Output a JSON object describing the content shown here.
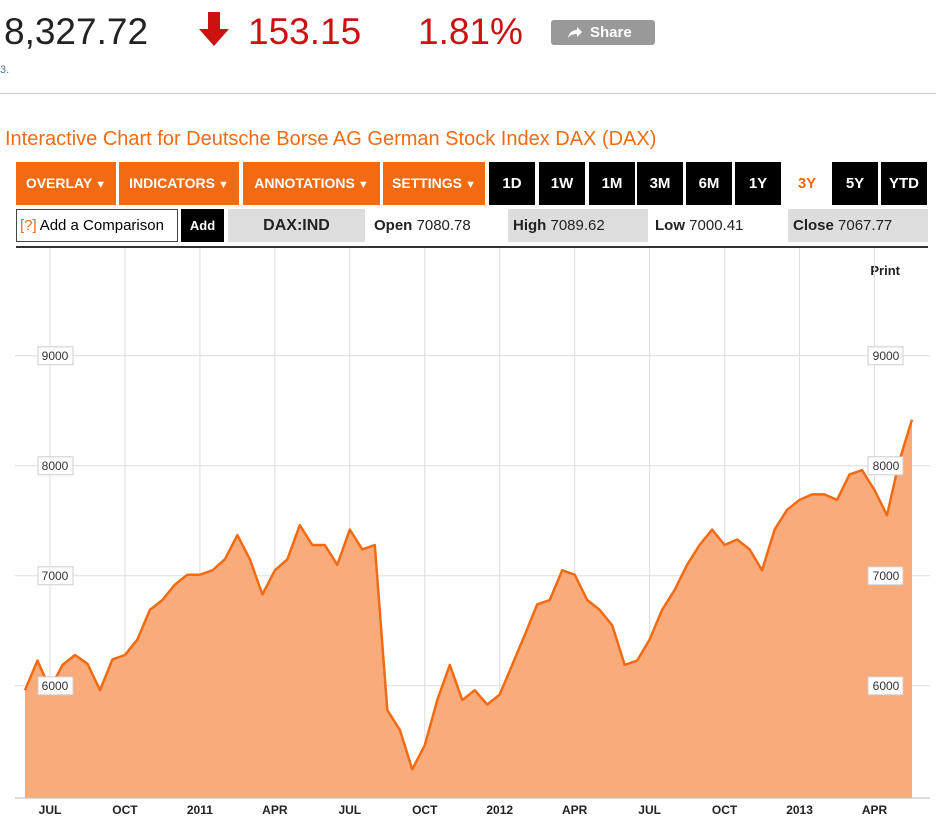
{
  "header": {
    "price": "8,327.72",
    "change": "153.15",
    "change_percent": "1.81%",
    "share": "Share",
    "note": "3."
  },
  "title": "Interactive Chart for Deutsche Borse AG German Stock Index DAX (DAX)",
  "toolbar": {
    "menus": [
      "OVERLAY",
      "INDICATORS",
      "ANNOTATIONS",
      "SETTINGS"
    ],
    "ranges": [
      "1D",
      "1W",
      "1M",
      "3M",
      "6M",
      "1Y",
      "3Y",
      "5Y",
      "YTD"
    ],
    "active_range": "3Y"
  },
  "comparison": {
    "help": "[?]",
    "placeholder": "Add a Comparison",
    "button": "Add"
  },
  "quote": {
    "symbol": "DAX:IND",
    "open_label": "Open",
    "open": 7080.78,
    "high_label": "High",
    "high": 7089.62,
    "low_label": "Low",
    "low": 7000.41,
    "close_label": "Close",
    "close": 7067.77
  },
  "print": "Print",
  "chart_data": {
    "type": "area",
    "categories": [
      null,
      null,
      "JUL",
      null,
      null,
      null,
      null,
      null,
      "OCT",
      null,
      null,
      null,
      null,
      null,
      "2011",
      null,
      null,
      null,
      null,
      null,
      "APR",
      null,
      null,
      null,
      null,
      null,
      "JUL",
      null,
      null,
      null,
      null,
      null,
      "OCT",
      null,
      null,
      null,
      null,
      null,
      "2012",
      null,
      null,
      null,
      null,
      null,
      "APR",
      null,
      null,
      null,
      null,
      null,
      "JUL",
      null,
      null,
      null,
      null,
      null,
      "OCT",
      null,
      null,
      null,
      null,
      null,
      "2013",
      null,
      null,
      null,
      null,
      null,
      "APR",
      null,
      null,
      null
    ],
    "values": [
      5960,
      6230,
      5970,
      6190,
      6280,
      6200,
      5960,
      6240,
      6280,
      6420,
      6690,
      6780,
      6920,
      7010,
      7010,
      7050,
      7150,
      7370,
      7150,
      6830,
      7050,
      7150,
      7460,
      7280,
      7280,
      7100,
      7420,
      7240,
      7280,
      5780,
      5600,
      5240,
      5460,
      5870,
      6190,
      5870,
      5960,
      5830,
      5920,
      6190,
      6460,
      6740,
      6780,
      7050,
      7010,
      6780,
      6690,
      6550,
      6190,
      6230,
      6420,
      6690,
      6870,
      7100,
      7280,
      7420,
      7280,
      7330,
      7240,
      7050,
      7420,
      7600,
      7690,
      7740,
      7740,
      7690,
      7920,
      7960,
      7780,
      7550,
      8050,
      8420
    ],
    "color": "#f26b13",
    "fill": "#f9ab7b",
    "ylim": [
      4980,
      9980
    ],
    "yticks": [
      6000,
      7000,
      8000,
      9000
    ],
    "grid": true
  }
}
